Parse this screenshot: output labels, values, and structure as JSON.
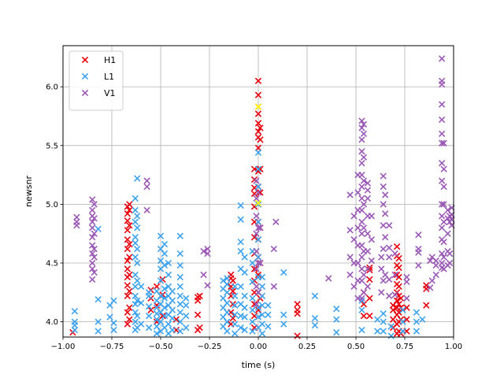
{
  "chart_data": {
    "type": "scatter",
    "marker": "x",
    "title": "",
    "xlabel": "time (s)",
    "ylabel": "newsnr",
    "xlim": [
      -1.0,
      1.0
    ],
    "ylim": [
      3.87,
      6.35
    ],
    "grid": true,
    "legend_placement": "top-left",
    "xticks": [
      -1.0,
      -0.75,
      -0.5,
      -0.25,
      0.0,
      0.25,
      0.5,
      0.75,
      1.0
    ],
    "xtick_labels": [
      "−1.00",
      "−0.75",
      "−0.50",
      "−0.25",
      "0.00",
      "0.25",
      "0.50",
      "0.75",
      "1.00"
    ],
    "yticks": [
      4.0,
      4.5,
      5.0,
      5.5,
      6.0
    ],
    "ytick_labels": [
      "4.0",
      "4.5",
      "5.0",
      "5.5",
      "6.0"
    ],
    "highlight_color": "#ffff00",
    "highlight_points": [
      [
        0.0,
        5.83
      ],
      [
        0.0,
        5.01
      ]
    ],
    "series": [
      {
        "name": "H1",
        "color": "#e8000b",
        "columns": [
          [
            -0.95,
            [
              3.91
            ]
          ],
          [
            -0.67,
            [
              3.98,
              4.08,
              4.22,
              4.31,
              4.38,
              4.45,
              4.52,
              4.62,
              4.7,
              4.78,
              4.86,
              4.92,
              4.98
            ]
          ],
          [
            -0.66,
            [
              4.02,
              4.12,
              4.26,
              4.4,
              4.55,
              4.66,
              4.82,
              4.95,
              5.0
            ]
          ],
          [
            -0.55,
            [
              4.1,
              4.2,
              4.27
            ]
          ],
          [
            -0.52,
            [
              4.0,
              4.14,
              4.3
            ]
          ],
          [
            -0.49,
            [
              4.05,
              4.23,
              4.36
            ]
          ],
          [
            -0.42,
            [
              3.93,
              4.02
            ]
          ],
          [
            -0.31,
            [
              3.93,
              4.06,
              4.18,
              4.21
            ]
          ],
          [
            -0.3,
            [
              3.95,
              4.22
            ]
          ],
          [
            -0.14,
            [
              3.98,
              4.08,
              4.22,
              4.3,
              4.37,
              4.4
            ]
          ],
          [
            -0.13,
            [
              4.03,
              4.15,
              4.26,
              4.35
            ]
          ],
          [
            -0.02,
            [
              3.95,
              4.05,
              4.15,
              4.25,
              4.35,
              4.45,
              4.58,
              4.72,
              4.85,
              4.98,
              5.09,
              5.14,
              5.21,
              5.3
            ]
          ],
          [
            0.0,
            [
              4.1,
              4.25,
              4.4,
              4.55,
              4.7,
              4.85,
              5.0,
              5.15,
              5.28,
              5.48,
              5.57,
              5.62,
              5.69,
              5.77,
              5.83,
              5.93,
              6.05
            ]
          ],
          [
            0.01,
            [
              4.2,
              4.5,
              4.8,
              5.1,
              5.3,
              5.55,
              5.65
            ]
          ],
          [
            0.2,
            [
              3.88,
              4.07,
              4.1,
              4.15
            ]
          ],
          [
            0.54,
            [
              4.05,
              4.15,
              4.25
            ]
          ],
          [
            0.57,
            [
              4.05,
              4.2,
              4.36,
              4.44,
              4.46
            ]
          ],
          [
            0.69,
            [
              3.95,
              4.02,
              4.1,
              4.14
            ]
          ],
          [
            0.71,
            [
              3.9,
              3.98,
              4.06,
              4.12,
              4.18,
              4.25,
              4.32,
              4.4,
              4.48,
              4.56,
              4.64
            ]
          ],
          [
            0.72,
            [
              3.92,
              4.0,
              4.08,
              4.15,
              4.22,
              4.3,
              4.38,
              4.46,
              4.54
            ]
          ],
          [
            0.73,
            [
              3.9,
              4.02,
              4.12,
              4.2
            ]
          ],
          [
            0.76,
            [
              3.92,
              4.02,
              4.12
            ]
          ],
          [
            0.86,
            [
              4.14,
              4.28,
              4.31
            ]
          ]
        ]
      },
      {
        "name": "L1",
        "color": "#3ea3ee",
        "columns": [
          [
            -0.94,
            [
              3.93,
              3.97,
              4.0,
              4.09
            ]
          ],
          [
            -0.82,
            [
              3.92,
              4.0,
              4.19,
              4.79
            ]
          ],
          [
            -0.76,
            [
              4.04,
              4.14
            ]
          ],
          [
            -0.74,
            [
              3.93,
              3.99,
              4.18
            ]
          ],
          [
            -0.63,
            [
              3.93,
              4.0,
              4.08,
              4.15,
              4.22,
              4.3,
              4.4,
              4.55,
              4.67,
              4.72,
              4.85,
              4.95,
              5.05
            ]
          ],
          [
            -0.62,
            [
              3.95,
              4.05,
              4.18,
              4.35,
              4.5,
              4.62,
              4.8,
              4.9,
              5.22
            ]
          ],
          [
            -0.6,
            [
              3.98,
              4.16,
              4.3
            ]
          ],
          [
            -0.56,
            [
              3.95,
              4.05,
              4.13,
              4.22,
              4.25
            ]
          ],
          [
            -0.52,
            [
              3.9,
              3.96,
              4.02,
              4.07,
              4.12,
              4.18,
              4.26
            ]
          ],
          [
            -0.5,
            [
              3.92,
              4.0,
              4.08,
              4.15,
              4.22,
              4.35,
              4.45,
              4.52,
              4.62,
              4.73
            ]
          ],
          [
            -0.48,
            [
              3.95,
              4.05,
              4.12,
              4.2,
              4.28,
              4.48,
              4.58,
              4.66
            ]
          ],
          [
            -0.46,
            [
              3.9,
              3.98,
              4.06,
              4.14,
              4.22,
              4.3,
              4.4,
              4.5
            ]
          ],
          [
            -0.44,
            [
              3.93,
              4.03,
              4.1,
              4.18,
              4.26
            ]
          ],
          [
            -0.4,
            [
              3.92,
              4.0,
              4.08,
              4.15,
              4.22,
              4.3,
              4.38,
              4.48,
              4.58,
              4.73
            ]
          ],
          [
            -0.37,
            [
              3.95,
              4.05,
              4.14,
              4.2
            ]
          ],
          [
            -0.18,
            [
              3.96,
              4.04,
              4.12,
              4.2,
              4.28,
              4.35
            ]
          ],
          [
            -0.16,
            [
              3.92,
              4.0,
              4.08,
              4.16,
              4.25,
              4.32,
              4.37
            ]
          ],
          [
            -0.12,
            [
              3.9,
              3.98,
              4.06,
              4.14,
              4.22,
              4.3
            ]
          ],
          [
            -0.09,
            [
              3.95,
              4.05,
              4.15,
              4.3,
              4.45,
              4.6,
              4.68,
              4.87,
              4.99
            ]
          ],
          [
            -0.07,
            [
              3.93,
              4.04,
              4.12,
              4.22,
              4.42,
              4.55
            ]
          ],
          [
            -0.03,
            [
              3.92,
              4.0,
              4.1,
              4.2,
              4.34,
              4.5,
              4.6
            ]
          ],
          [
            0.0,
            [
              3.95,
              4.04,
              4.12,
              4.25,
              4.38,
              4.55,
              4.7,
              4.85,
              5.0,
              5.15,
              5.3,
              5.44
            ]
          ],
          [
            0.02,
            [
              3.9,
              3.98,
              4.06,
              4.14,
              4.22,
              4.3,
              4.38
            ]
          ],
          [
            0.05,
            [
              3.96,
              4.06,
              4.14
            ]
          ],
          [
            0.13,
            [
              3.98,
              4.06,
              4.42
            ]
          ],
          [
            0.29,
            [
              3.97,
              4.03,
              4.22
            ]
          ],
          [
            0.4,
            [
              3.91,
              4.02,
              4.11
            ]
          ],
          [
            0.53,
            [
              3.93,
              4.1,
              4.18
            ]
          ],
          [
            0.61,
            [
              3.92,
              4.02
            ]
          ],
          [
            0.64,
            [
              3.92,
              4.0,
              4.07
            ]
          ],
          [
            0.68,
            [
              3.88,
              3.96
            ]
          ],
          [
            0.74,
            [
              3.92,
              4.0,
              4.1
            ]
          ],
          [
            0.81,
            [
              3.92,
              4.0,
              4.08
            ]
          ],
          [
            0.84,
            [
              4.02
            ]
          ]
        ]
      },
      {
        "name": "V1",
        "color": "#9b59b6",
        "columns": [
          [
            -0.93,
            [
              4.82,
              4.85,
              4.89
            ]
          ],
          [
            -0.85,
            [
              4.36,
              4.45,
              4.5,
              4.58,
              4.65,
              4.72,
              4.8,
              4.85,
              4.9,
              4.95,
              5.04
            ]
          ],
          [
            -0.84,
            [
              4.42,
              4.55,
              4.62,
              4.75,
              4.88,
              5.0
            ]
          ],
          [
            -0.57,
            [
              4.95,
              5.15,
              5.2
            ]
          ],
          [
            -0.28,
            [
              4.4,
              4.6
            ]
          ],
          [
            -0.26,
            [
              4.31,
              4.58,
              4.62
            ]
          ],
          [
            -0.01,
            [
              4.15,
              4.3,
              4.45,
              4.6,
              4.75,
              4.9,
              5.05,
              5.2
            ]
          ],
          [
            0.0,
            [
              4.25,
              4.5,
              4.8,
              5.1
            ]
          ],
          [
            0.01,
            [
              4.5,
              4.8
            ]
          ],
          [
            0.08,
            [
              4.3,
              4.62
            ]
          ],
          [
            0.09,
            [
              4.85
            ]
          ],
          [
            0.36,
            [
              4.37
            ]
          ],
          [
            0.47,
            [
              4.4,
              4.55,
              4.78,
              5.08
            ]
          ],
          [
            0.49,
            [
              4.3,
              4.5,
              4.7,
              4.9
            ]
          ],
          [
            0.51,
            [
              4.2,
              4.35,
              4.5,
              4.65,
              4.8,
              4.95,
              5.1,
              5.25
            ]
          ],
          [
            0.53,
            [
              4.2,
              4.35,
              4.45,
              4.55,
              4.65,
              4.75,
              4.85,
              4.95,
              5.05,
              5.15,
              5.25,
              5.35,
              5.45,
              5.55,
              5.65,
              5.71
            ]
          ],
          [
            0.54,
            [
              4.25,
              4.4,
              4.6,
              4.8,
              5.0,
              5.2,
              5.4,
              5.6,
              5.68
            ]
          ],
          [
            0.56,
            [
              4.3,
              4.45,
              4.6,
              4.75,
              4.9,
              5.05,
              5.12,
              5.18
            ]
          ],
          [
            0.58,
            [
              4.52,
              4.7,
              4.9
            ]
          ],
          [
            0.63,
            [
              4.25,
              4.45,
              4.55
            ]
          ],
          [
            0.64,
            [
              4.35,
              4.62,
              4.82,
              5.0,
              5.15,
              5.24
            ]
          ],
          [
            0.65,
            [
              4.4,
              4.72,
              4.92,
              5.08
            ]
          ],
          [
            0.67,
            [
              4.22,
              4.36,
              4.55,
              4.63,
              4.82
            ]
          ],
          [
            0.7,
            [
              4.23,
              4.4,
              4.58
            ]
          ],
          [
            0.76,
            [
              4.2,
              4.34,
              4.38
            ]
          ],
          [
            0.82,
            [
              4.48,
              4.59,
              4.62,
              4.74
            ]
          ],
          [
            0.88,
            [
              4.29,
              4.52
            ]
          ],
          [
            0.89,
            [
              4.35,
              4.55
            ]
          ],
          [
            0.91,
            [
              4.4,
              4.48,
              4.52
            ]
          ],
          [
            0.94,
            [
              4.46,
              4.5,
              4.58,
              4.7,
              4.8,
              4.9,
              5.0,
              5.2,
              5.35,
              5.52,
              5.6,
              5.72,
              5.85,
              6.02,
              6.05,
              6.24
            ]
          ],
          [
            0.95,
            [
              4.45,
              4.55,
              4.68,
              4.85,
              5.0,
              5.15,
              5.3,
              5.52
            ]
          ],
          [
            0.97,
            [
              4.48,
              4.6,
              4.75,
              4.88,
              4.95
            ]
          ],
          [
            0.98,
            [
              4.5,
              4.58,
              4.85,
              4.9
            ]
          ],
          [
            0.99,
            [
              4.82,
              4.87,
              4.91,
              4.97
            ]
          ]
        ]
      }
    ]
  }
}
